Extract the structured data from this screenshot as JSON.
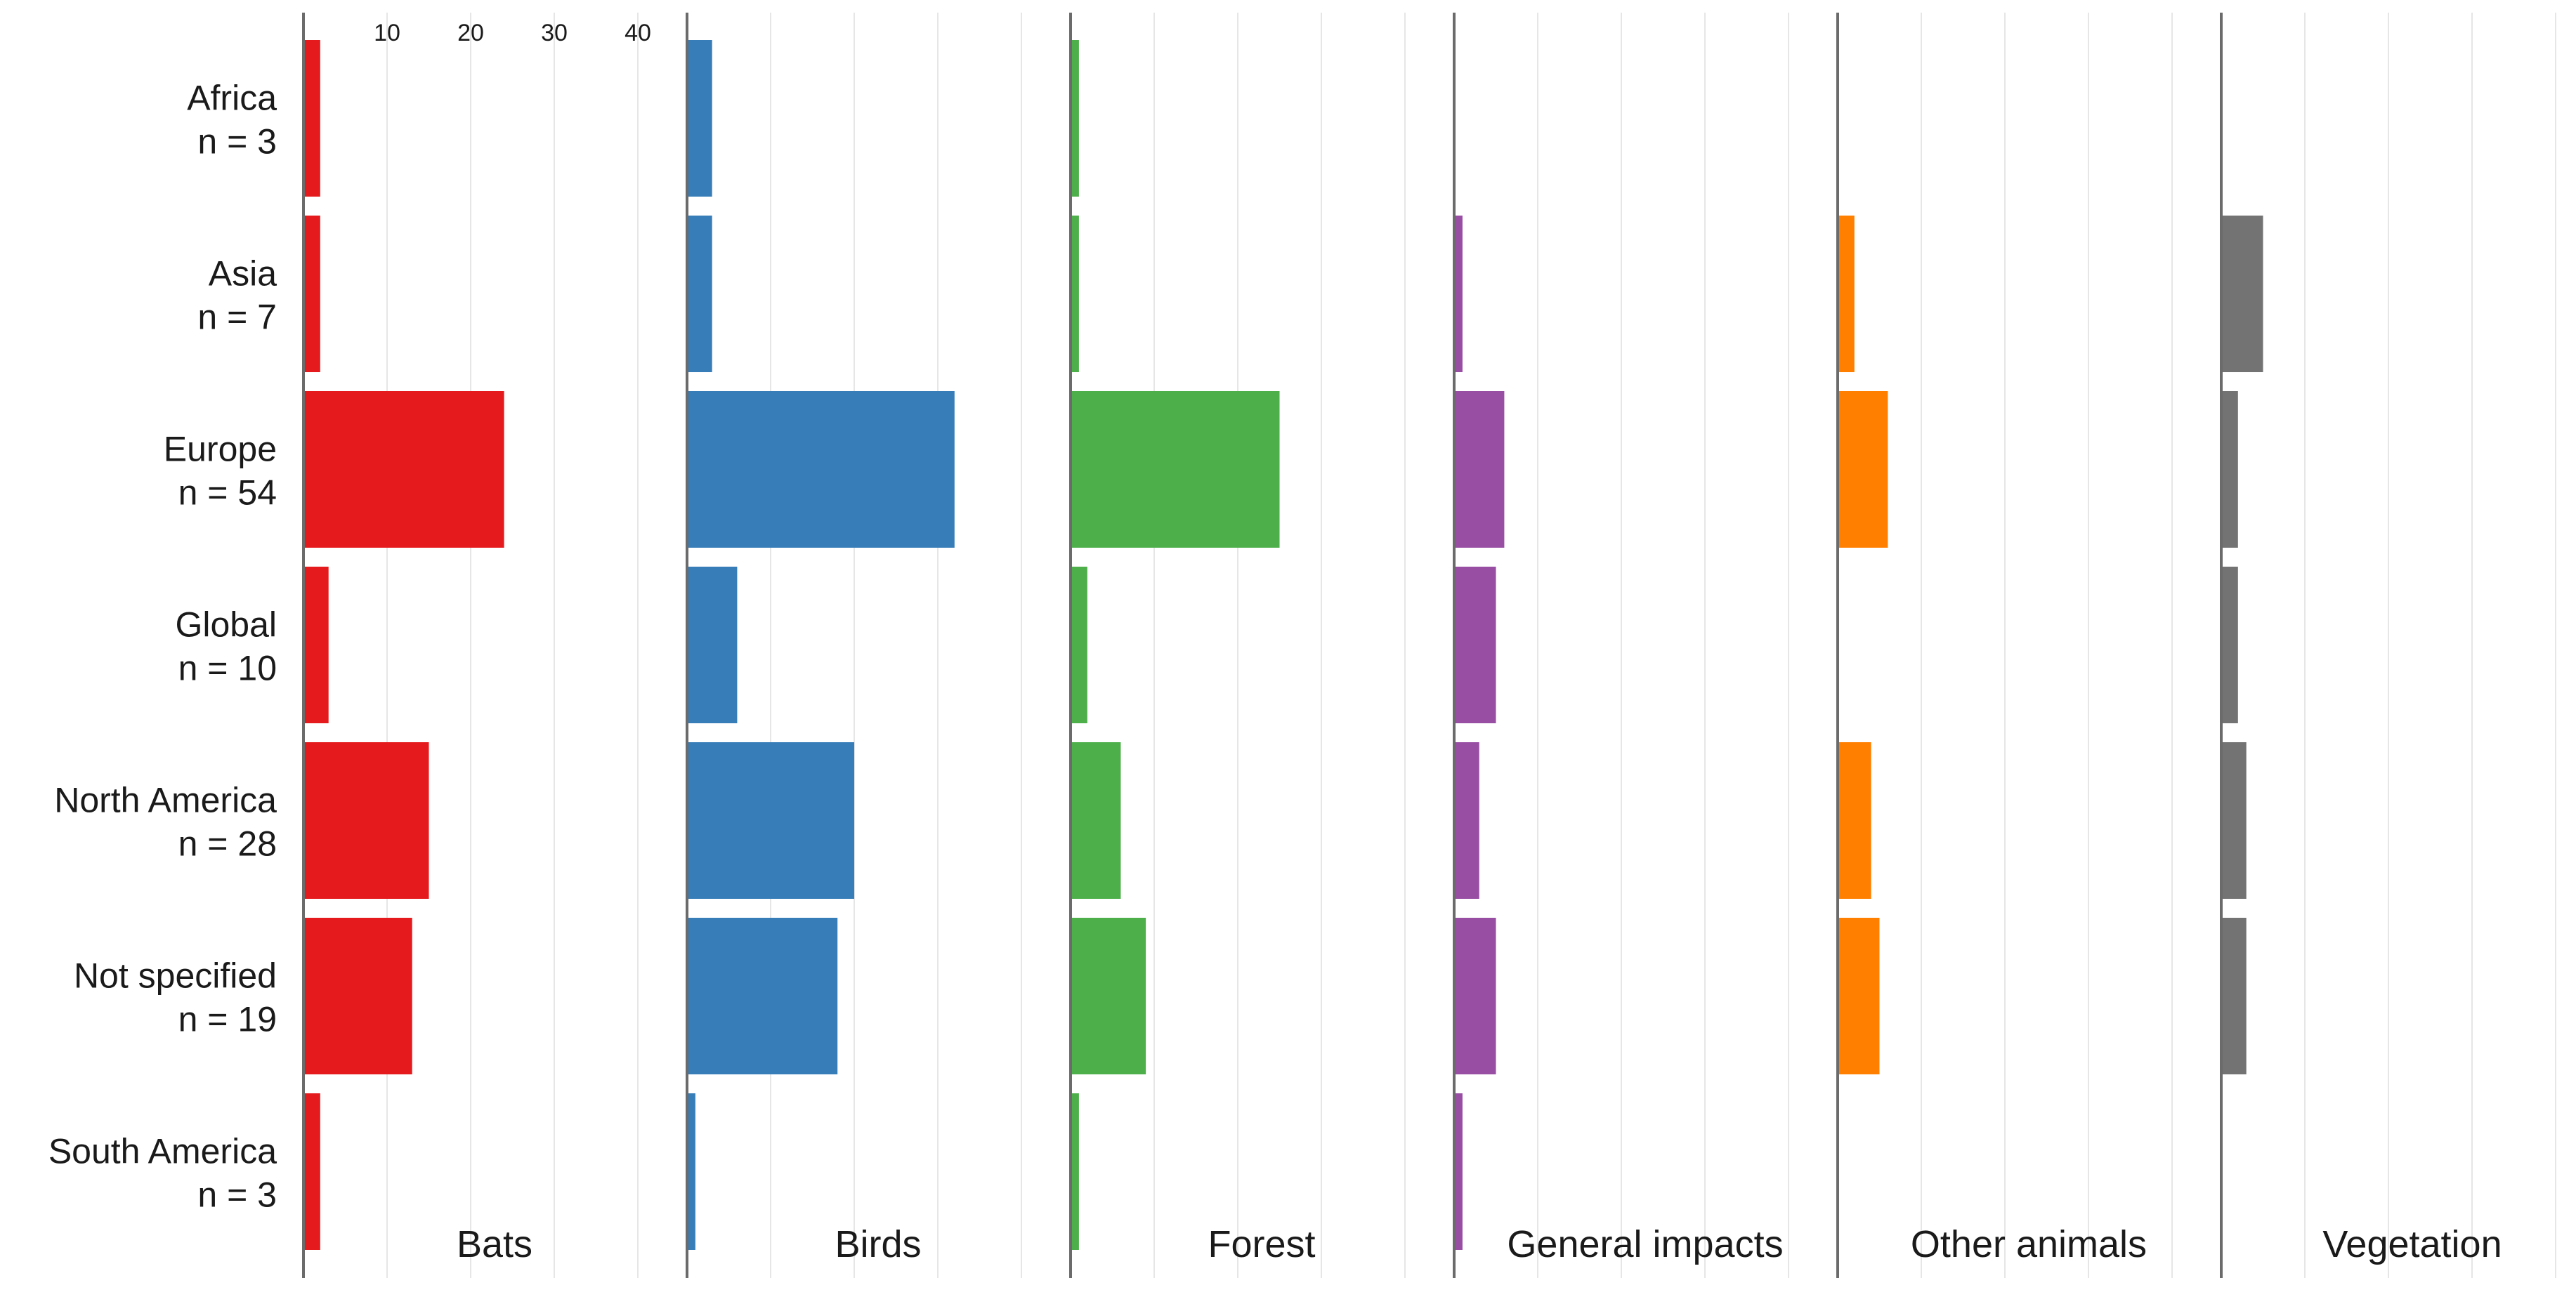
{
  "chart_data": {
    "type": "bar",
    "orientation": "horizontal",
    "faceted": true,
    "x_ticks": [
      10,
      20,
      30,
      40
    ],
    "xlim": [
      0,
      45
    ],
    "grid": true,
    "categories": [
      {
        "name": "Africa",
        "n_label": "n = 3"
      },
      {
        "name": "Asia",
        "n_label": "n = 7"
      },
      {
        "name": "Europe",
        "n_label": "n = 54"
      },
      {
        "name": "Global",
        "n_label": "n = 10"
      },
      {
        "name": "North America",
        "n_label": "n = 28"
      },
      {
        "name": "Not specified",
        "n_label": "n = 19"
      },
      {
        "name": "South America",
        "n_label": "n = 3"
      }
    ],
    "series": [
      {
        "name": "Bats",
        "color": "#e41a1c",
        "values": [
          2,
          2,
          24,
          3,
          15,
          13,
          2
        ]
      },
      {
        "name": "Birds",
        "color": "#377eb8",
        "values": [
          3,
          3,
          32,
          6,
          20,
          18,
          1
        ]
      },
      {
        "name": "Forest",
        "color": "#4daf4a",
        "values": [
          1,
          1,
          25,
          2,
          6,
          9,
          1
        ]
      },
      {
        "name": "General impacts",
        "color": "#984ea3",
        "values": [
          0,
          1,
          6,
          5,
          3,
          5,
          1
        ]
      },
      {
        "name": "Other animals",
        "color": "#ff7f00",
        "values": [
          0,
          2,
          6,
          0,
          4,
          5,
          0
        ]
      },
      {
        "name": "Vegetation",
        "color": "#737373",
        "values": [
          0,
          5,
          2,
          2,
          3,
          3,
          0
        ]
      }
    ]
  }
}
